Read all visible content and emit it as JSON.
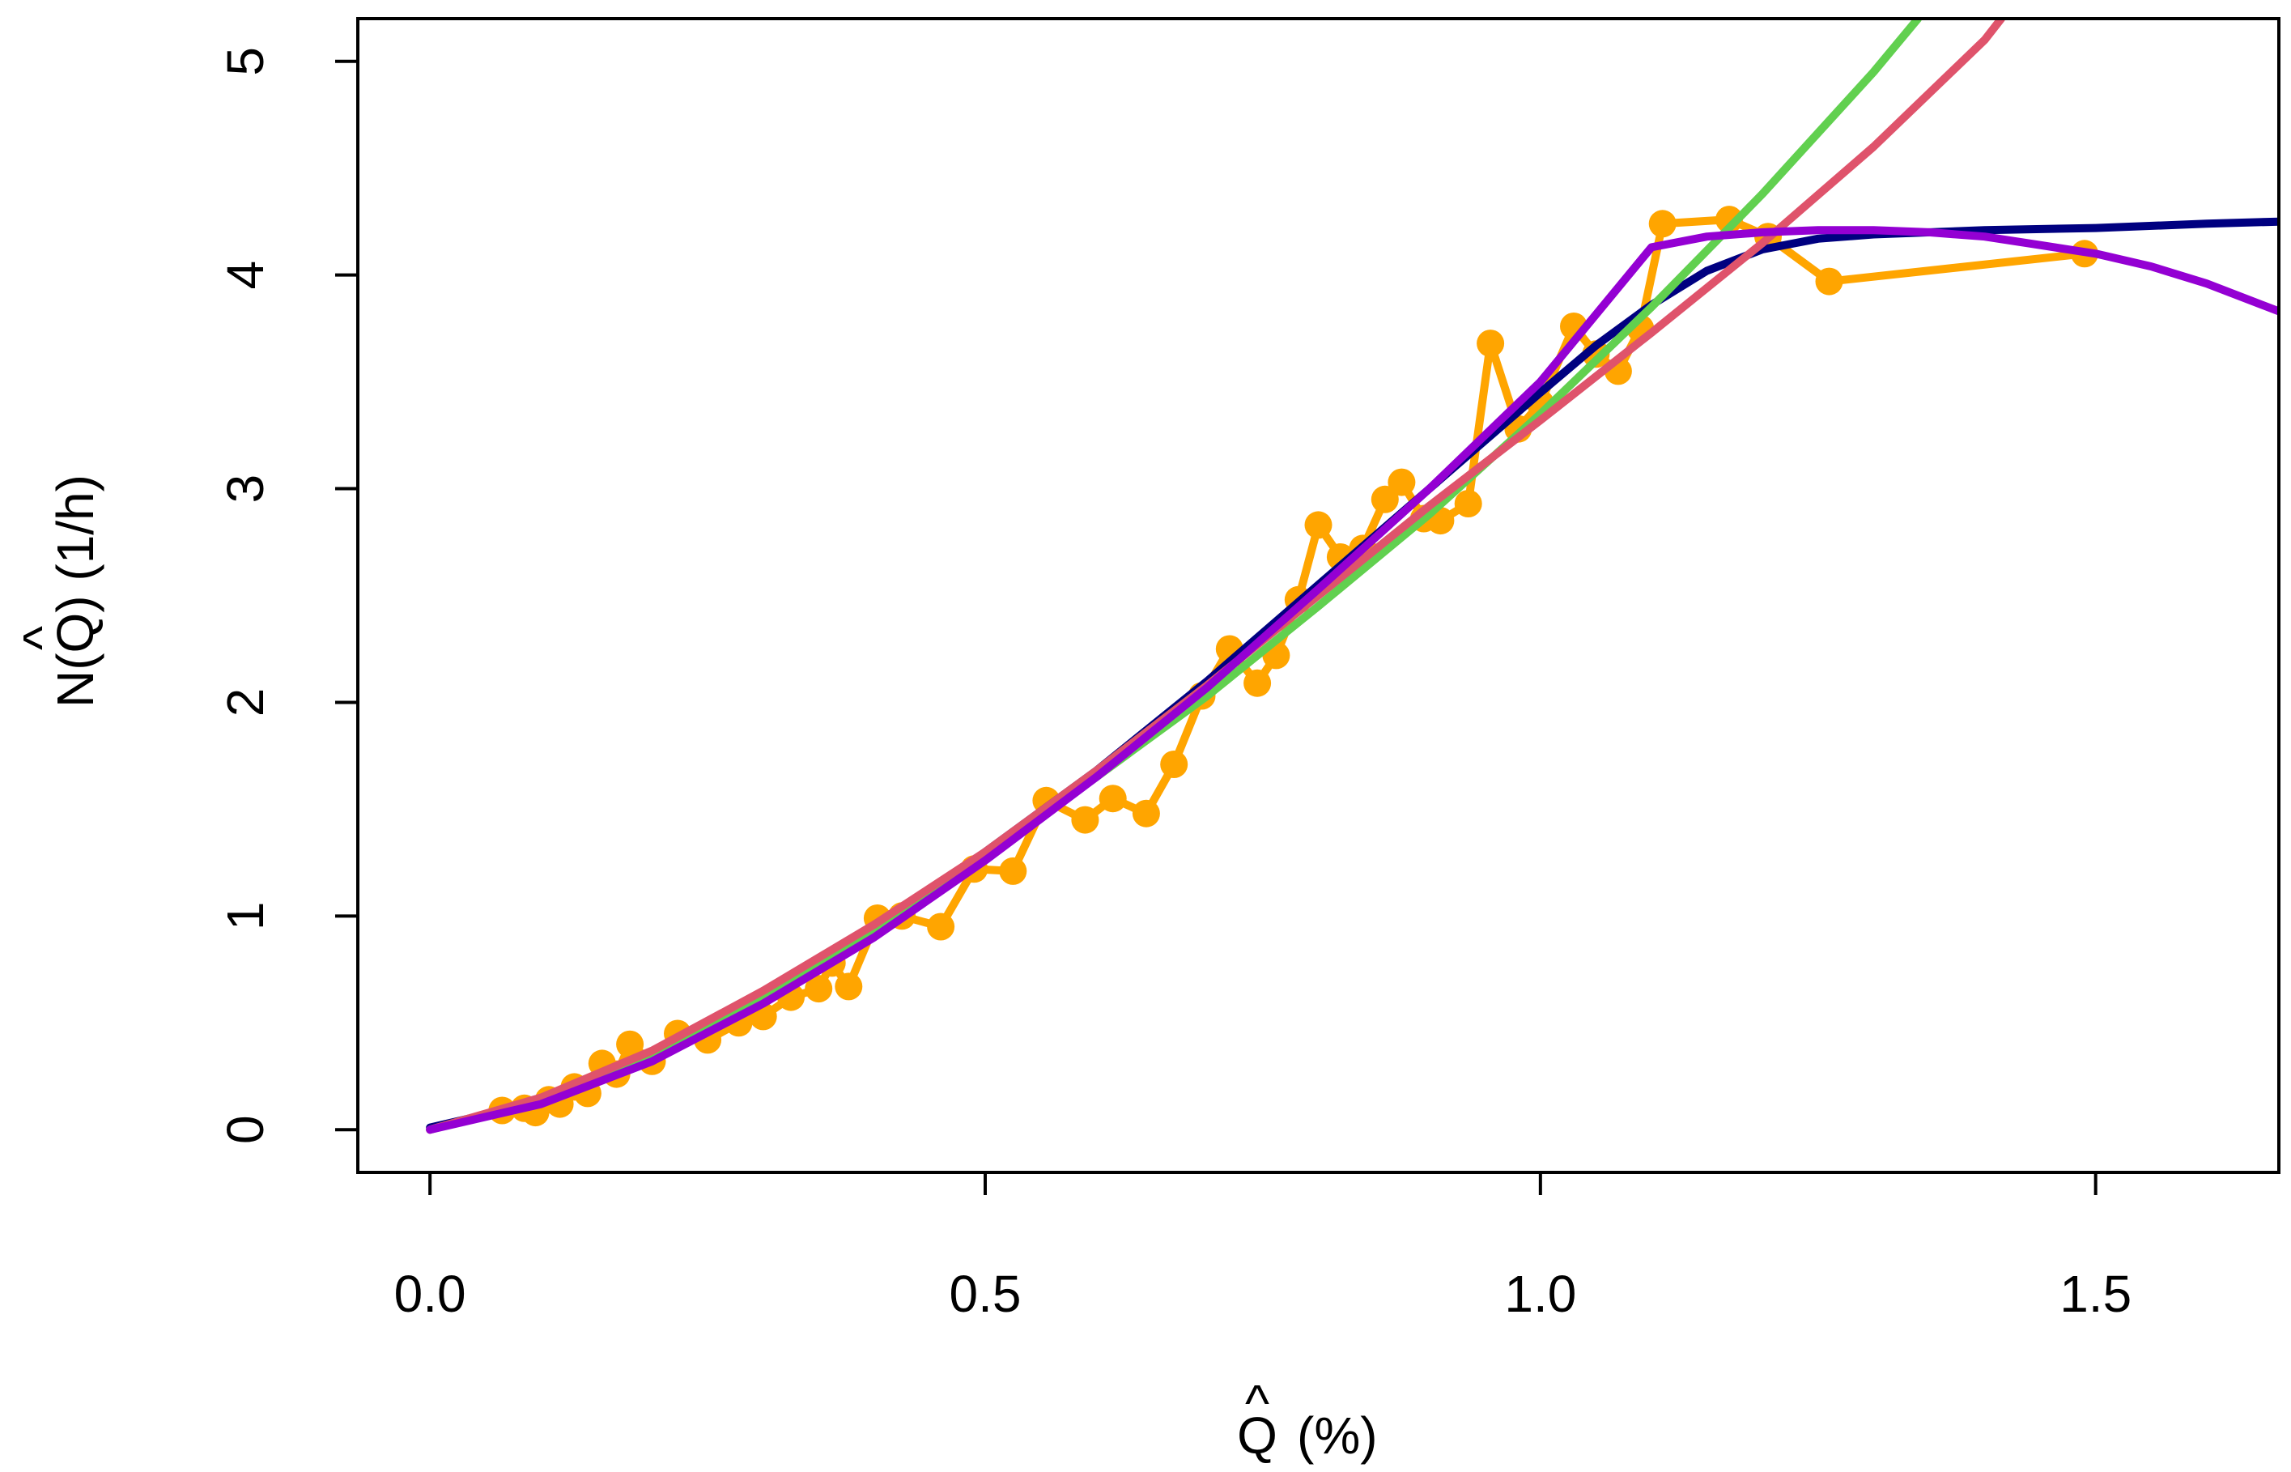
{
  "chart_data": {
    "type": "line",
    "title": "",
    "xlabel": {
      "symbol": "Q",
      "hat": "^",
      "unit": "(%)"
    },
    "ylabel": {
      "prefix": "N(",
      "symbol": "Q",
      "hat": "^",
      "suffix": ") (1/h)"
    },
    "xlim": [
      -0.065,
      1.665
    ],
    "ylim": [
      -0.2,
      5.2
    ],
    "xticks": [
      0.0,
      0.5,
      1.0,
      1.5
    ],
    "xtick_labels": [
      "0.0",
      "0.5",
      "1.0",
      "1.5"
    ],
    "yticks": [
      0,
      1,
      2,
      3,
      4,
      5
    ],
    "ytick_labels": [
      "0",
      "1",
      "2",
      "3",
      "4",
      "5"
    ],
    "grid": false,
    "legend": "none",
    "series": [
      {
        "kind": "points-line",
        "color": "#FFA500",
        "x": [
          0.0,
          0.065,
          0.085,
          0.095,
          0.107,
          0.117,
          0.13,
          0.142,
          0.155,
          0.168,
          0.18,
          0.2,
          0.223,
          0.25,
          0.278,
          0.3,
          0.325,
          0.35,
          0.362,
          0.377,
          0.403,
          0.425,
          0.46,
          0.49,
          0.525,
          0.555,
          0.59,
          0.615,
          0.645,
          0.67,
          0.695,
          0.72,
          0.745,
          0.762,
          0.782,
          0.8,
          0.82,
          0.84,
          0.86,
          0.875,
          0.895,
          0.91,
          0.935,
          0.955,
          0.98,
          1.0,
          1.03,
          1.05,
          1.07,
          1.09,
          1.11,
          1.17,
          1.205,
          1.26,
          1.49
        ],
        "y": [
          0.0,
          0.09,
          0.1,
          0.08,
          0.14,
          0.12,
          0.2,
          0.17,
          0.31,
          0.26,
          0.4,
          0.32,
          0.45,
          0.42,
          0.5,
          0.53,
          0.62,
          0.66,
          0.78,
          0.67,
          0.99,
          1.0,
          0.95,
          1.22,
          1.21,
          1.54,
          1.45,
          1.55,
          1.48,
          1.71,
          2.03,
          2.25,
          2.09,
          2.22,
          2.48,
          2.83,
          2.68,
          2.72,
          2.95,
          3.03,
          2.86,
          2.85,
          2.93,
          3.68,
          3.28,
          3.4,
          3.76,
          3.63,
          3.55,
          3.75,
          4.24,
          4.26,
          4.18,
          3.97,
          4.1
        ]
      },
      {
        "kind": "line",
        "color": "#000080",
        "x": [
          0.0,
          0.1,
          0.2,
          0.3,
          0.4,
          0.5,
          0.6,
          0.7,
          0.8,
          0.9,
          1.0,
          1.05,
          1.1,
          1.15,
          1.2,
          1.25,
          1.3,
          1.4,
          1.5,
          1.6,
          1.665
        ],
        "y": [
          0.01,
          0.13,
          0.34,
          0.61,
          0.93,
          1.3,
          1.68,
          2.1,
          2.55,
          3.0,
          3.45,
          3.67,
          3.86,
          4.02,
          4.12,
          4.17,
          4.19,
          4.21,
          4.22,
          4.24,
          4.25
        ]
      },
      {
        "kind": "line",
        "color": "#61D04F",
        "x": [
          0.0,
          0.1,
          0.2,
          0.3,
          0.4,
          0.5,
          0.6,
          0.7,
          0.8,
          0.9,
          1.0,
          1.1,
          1.2,
          1.3,
          1.34
        ],
        "y": [
          0.0,
          0.14,
          0.34,
          0.62,
          0.93,
          1.28,
          1.65,
          2.03,
          2.45,
          2.88,
          3.35,
          3.85,
          4.38,
          4.95,
          5.2
        ]
      },
      {
        "kind": "line",
        "color": "#DF536B",
        "x": [
          0.0,
          0.1,
          0.2,
          0.3,
          0.4,
          0.5,
          0.6,
          0.7,
          0.8,
          0.9,
          1.0,
          1.1,
          1.2,
          1.3,
          1.4,
          1.415
        ],
        "y": [
          0.0,
          0.15,
          0.37,
          0.65,
          0.96,
          1.3,
          1.68,
          2.08,
          2.5,
          2.92,
          3.32,
          3.73,
          4.15,
          4.6,
          5.1,
          5.2
        ]
      },
      {
        "kind": "line",
        "color": "#9400D3",
        "x": [
          0.0,
          0.1,
          0.2,
          0.3,
          0.4,
          0.5,
          0.6,
          0.7,
          0.8,
          0.9,
          1.0,
          1.1,
          1.15,
          1.2,
          1.25,
          1.3,
          1.35,
          1.4,
          1.45,
          1.5,
          1.55,
          1.6,
          1.665
        ],
        "y": [
          0.0,
          0.12,
          0.32,
          0.59,
          0.9,
          1.26,
          1.65,
          2.07,
          2.53,
          3.0,
          3.5,
          4.13,
          4.18,
          4.2,
          4.21,
          4.21,
          4.2,
          4.18,
          4.14,
          4.1,
          4.04,
          3.96,
          3.83
        ]
      }
    ]
  }
}
